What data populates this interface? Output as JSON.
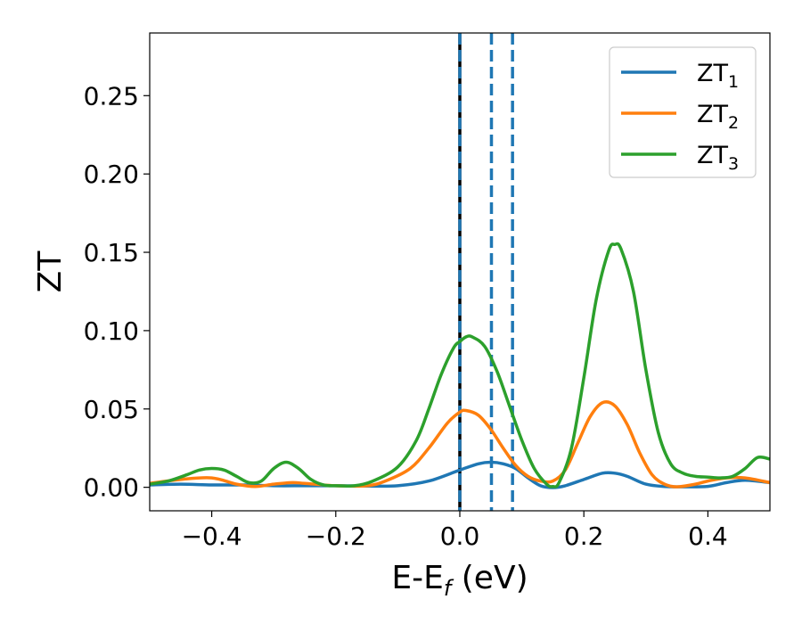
{
  "chart_data": {
    "type": "line",
    "xlabel_main": "E-E",
    "xlabel_sub": "f",
    "xlabel_unit": " (eV)",
    "ylabel": "ZT",
    "xlim": [
      -0.5,
      0.5
    ],
    "ylim": [
      -0.015,
      0.29
    ],
    "xticks": [
      -0.4,
      -0.2,
      0.0,
      0.2,
      0.4
    ],
    "xtick_labels": [
      "−0.4",
      "−0.2",
      "0.0",
      "0.2",
      "0.4"
    ],
    "yticks": [
      0.0,
      0.05,
      0.1,
      0.15,
      0.2,
      0.25
    ],
    "ytick_labels": [
      "0.00",
      "0.05",
      "0.10",
      "0.15",
      "0.20",
      "0.25"
    ],
    "grid": false,
    "legend_placement": "top-right",
    "vertical_lines": [
      {
        "x": 0.0,
        "color": "#000000",
        "style": "solid"
      },
      {
        "x": 0.0,
        "color": "#1f77b4",
        "style": "dashed"
      },
      {
        "x": 0.051,
        "color": "#1f77b4",
        "style": "dashed"
      },
      {
        "x": 0.085,
        "color": "#1f77b4",
        "style": "dashed"
      }
    ],
    "series": [
      {
        "name": "ZT",
        "sub": "1",
        "color": "#1f77b4",
        "x": [
          -0.5,
          -0.45,
          -0.4,
          -0.35,
          -0.3,
          -0.25,
          -0.2,
          -0.15,
          -0.1,
          -0.05,
          0.0,
          0.03,
          0.05,
          0.07,
          0.09,
          0.11,
          0.13,
          0.15,
          0.17,
          0.2,
          0.23,
          0.25,
          0.27,
          0.3,
          0.33,
          0.36,
          0.4,
          0.43,
          0.46,
          0.5
        ],
        "y": [
          0.0015,
          0.002,
          0.0015,
          0.0015,
          0.001,
          0.001,
          0.001,
          0.0008,
          0.001,
          0.004,
          0.011,
          0.015,
          0.016,
          0.015,
          0.012,
          0.006,
          0.001,
          -0.0002,
          0.001,
          0.005,
          0.009,
          0.009,
          0.007,
          0.002,
          0.0005,
          0.0003,
          0.0006,
          0.003,
          0.0045,
          0.003
        ]
      },
      {
        "name": "ZT",
        "sub": "2",
        "color": "#ff7f0e",
        "x": [
          -0.5,
          -0.45,
          -0.4,
          -0.36,
          -0.33,
          -0.3,
          -0.27,
          -0.25,
          -0.2,
          -0.15,
          -0.12,
          -0.08,
          -0.05,
          -0.02,
          0.0,
          0.01,
          0.03,
          0.05,
          0.07,
          0.09,
          0.11,
          0.13,
          0.15,
          0.17,
          0.19,
          0.21,
          0.23,
          0.25,
          0.27,
          0.29,
          0.31,
          0.33,
          0.35,
          0.38,
          0.4,
          0.43,
          0.46,
          0.5
        ],
        "y": [
          0.0025,
          0.005,
          0.006,
          0.002,
          0.0005,
          0.002,
          0.003,
          0.0025,
          0.001,
          0.001,
          0.004,
          0.012,
          0.025,
          0.041,
          0.048,
          0.049,
          0.046,
          0.037,
          0.025,
          0.014,
          0.007,
          0.004,
          0.004,
          0.011,
          0.028,
          0.045,
          0.054,
          0.052,
          0.04,
          0.022,
          0.008,
          0.002,
          0.0003,
          0.002,
          0.004,
          0.006,
          0.006,
          0.003
        ]
      },
      {
        "name": "ZT",
        "sub": "3",
        "color": "#2ca02c",
        "x": [
          -0.5,
          -0.47,
          -0.44,
          -0.42,
          -0.4,
          -0.38,
          -0.36,
          -0.34,
          -0.32,
          -0.3,
          -0.28,
          -0.26,
          -0.24,
          -0.22,
          -0.2,
          -0.17,
          -0.14,
          -0.1,
          -0.07,
          -0.05,
          -0.03,
          -0.01,
          0.0,
          0.01,
          0.02,
          0.04,
          0.06,
          0.08,
          0.1,
          0.12,
          0.14,
          0.15,
          0.16,
          0.18,
          0.2,
          0.22,
          0.24,
          0.25,
          0.26,
          0.28,
          0.3,
          0.32,
          0.34,
          0.36,
          0.38,
          0.4,
          0.42,
          0.44,
          0.46,
          0.48,
          0.5
        ],
        "y": [
          0.002,
          0.004,
          0.008,
          0.011,
          0.012,
          0.011,
          0.007,
          0.003,
          0.004,
          0.012,
          0.016,
          0.012,
          0.005,
          0.0015,
          0.001,
          0.001,
          0.004,
          0.013,
          0.03,
          0.05,
          0.072,
          0.089,
          0.093,
          0.096,
          0.096,
          0.09,
          0.074,
          0.052,
          0.03,
          0.012,
          0.002,
          0.0005,
          0.003,
          0.025,
          0.07,
          0.12,
          0.151,
          0.155,
          0.152,
          0.125,
          0.075,
          0.035,
          0.015,
          0.009,
          0.007,
          0.0065,
          0.006,
          0.007,
          0.012,
          0.019,
          0.018
        ]
      }
    ]
  }
}
